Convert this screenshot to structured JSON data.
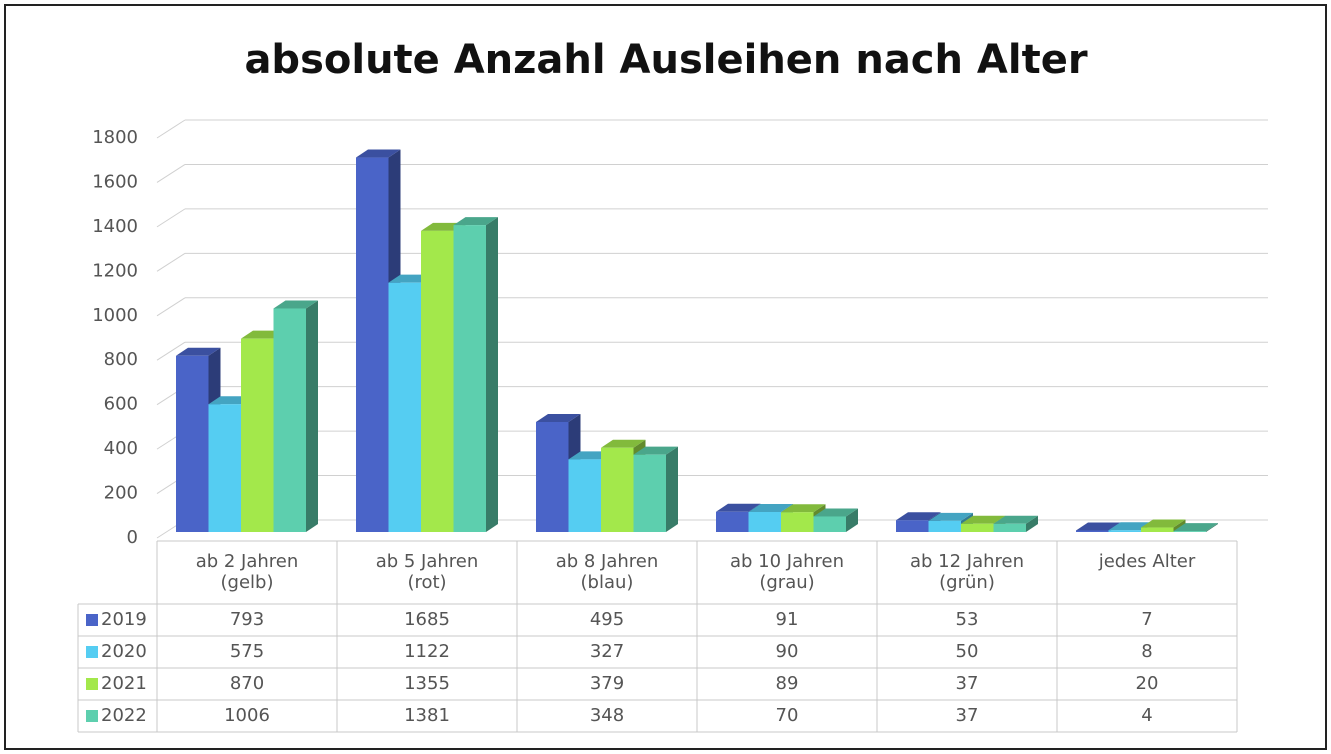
{
  "chart_data": {
    "type": "bar",
    "title": "absolute Anzahl Ausleihen nach Alter",
    "categories": [
      "ab 2 Jahren (gelb)",
      "ab 5 Jahren (rot)",
      "ab 8 Jahren (blau)",
      "ab 10 Jahren (grau)",
      "ab 12 Jahren (grün)",
      "jedes Alter"
    ],
    "series": [
      {
        "name": "2019",
        "color": "#4a64c8",
        "values": [
          793,
          1685,
          495,
          91,
          53,
          7
        ]
      },
      {
        "name": "2020",
        "color": "#55cdf2",
        "values": [
          575,
          1122,
          327,
          90,
          50,
          8
        ]
      },
      {
        "name": "2021",
        "color": "#a3e84b",
        "values": [
          870,
          1355,
          379,
          89,
          37,
          20
        ]
      },
      {
        "name": "2022",
        "color": "#5dcfae",
        "values": [
          1006,
          1381,
          348,
          70,
          37,
          4
        ]
      }
    ],
    "ylim": [
      0,
      1800
    ],
    "yticks": [
      0,
      200,
      400,
      600,
      800,
      1000,
      1200,
      1400,
      1600,
      1800
    ],
    "grid": true
  }
}
